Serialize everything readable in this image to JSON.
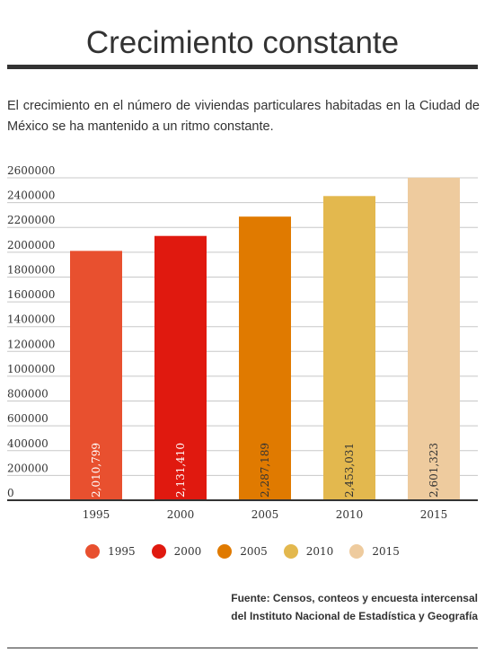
{
  "header": {
    "title": "Crecimiento constante"
  },
  "description": "El crecimiento en el número de viviendas particulares habitadas en la Ciudad de México se ha mantenido a un ritmo constante.",
  "chart_data": {
    "type": "bar",
    "categories": [
      "1995",
      "2000",
      "2005",
      "2010",
      "2015"
    ],
    "values": [
      2010799,
      2131410,
      2287189,
      2453031,
      2601323
    ],
    "value_labels": [
      "2,010,799",
      "2,131,410",
      "2,287,189",
      "2,453,031",
      "2,601,323"
    ],
    "colors": [
      "#e8502f",
      "#e0190f",
      "#e07a00",
      "#e3b84e",
      "#eecb9e"
    ],
    "label_colors": [
      "#ffffff",
      "#ffffff",
      "#333333",
      "#333333",
      "#333333"
    ],
    "ylim": [
      0,
      2600000
    ],
    "yticks": [
      0,
      200000,
      400000,
      600000,
      800000,
      1000000,
      1200000,
      1400000,
      1600000,
      1800000,
      2000000,
      2200000,
      2400000,
      2600000
    ],
    "ytick_labels": [
      "0",
      "200000",
      "400000",
      "600000",
      "800000",
      "1000000",
      "1200000",
      "1400000",
      "1600000",
      "1800000",
      "2000000",
      "2200000",
      "2400000",
      "2600000"
    ],
    "grid": true,
    "legend": {
      "placement": "bottom-center",
      "entries": [
        "1995",
        "2000",
        "2005",
        "2010",
        "2015"
      ]
    },
    "xlabel": "",
    "ylabel": ""
  },
  "source": {
    "line1": "Fuente: Censos, conteos y encuesta intercensal",
    "line2": "del Instituto Nacional de Estadística y Geografía"
  }
}
